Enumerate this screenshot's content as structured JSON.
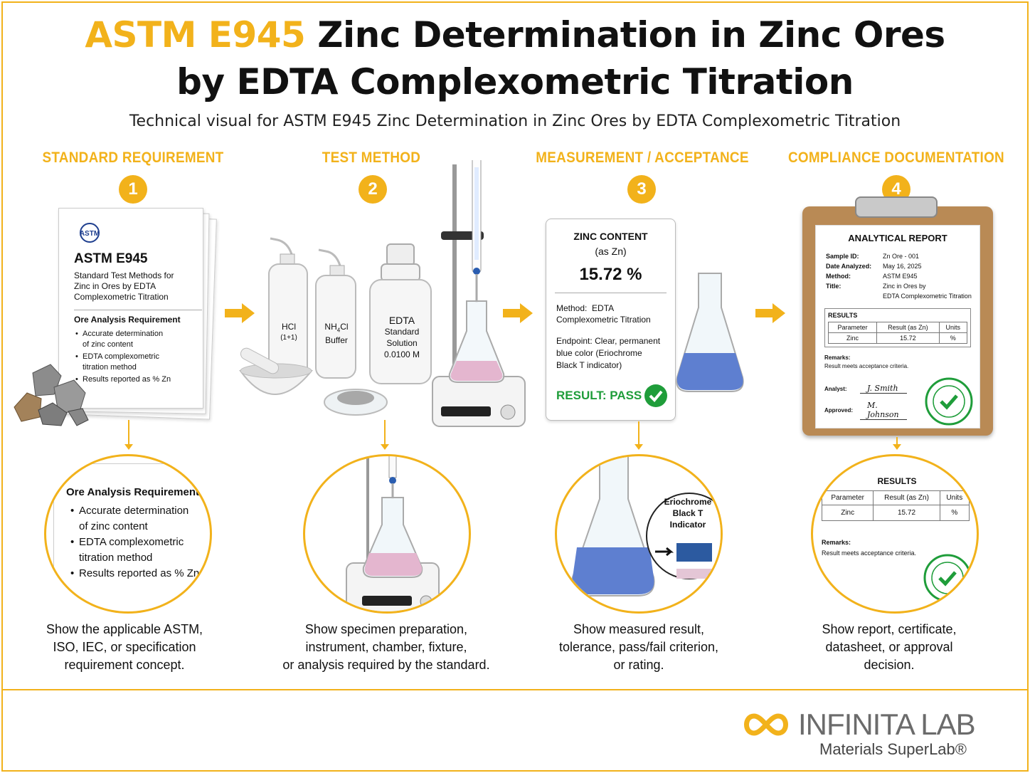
{
  "title": {
    "accent": "ASTM E945",
    "line1_rest": " Zinc Determination in Zinc Ores",
    "line2": "by EDTA Complexometric Titration"
  },
  "subtitle": "Technical visual for ASTM E945 Zinc Determination in Zinc Ores by EDTA Complexometric Titration",
  "colors": {
    "accent": "#f2b21b",
    "pass": "#1f9d3a",
    "indigo": "#1f3f8f"
  },
  "steps": [
    {
      "heading": "STANDARD REQUIREMENT",
      "number": "1",
      "caption": [
        "Show the applicable ASTM,",
        "ISO, IEC, or specification",
        "requirement concept."
      ]
    },
    {
      "heading": "TEST METHOD",
      "number": "2",
      "caption": [
        "Show specimen preparation,",
        "instrument, chamber, fixture,",
        "or analysis required by the standard."
      ]
    },
    {
      "heading": "MEASUREMENT / ACCEPTANCE",
      "number": "3",
      "caption": [
        "Show measured result,",
        "tolerance, pass/fail criterion,",
        "or rating."
      ]
    },
    {
      "heading": "COMPLIANCE DOCUMENTATION",
      "number": "4",
      "caption": [
        "Show report, certificate,",
        "datasheet, or approval",
        "decision."
      ]
    }
  ],
  "standard_doc": {
    "logo": "ASTM",
    "code": "ASTM E945",
    "desc": [
      "Standard Test Methods for",
      "Zinc in Ores by EDTA",
      "Complexometric Titration"
    ],
    "req_heading": "Ore Analysis Requirement",
    "req_items": [
      [
        "Accurate determination",
        "of zinc content"
      ],
      [
        "EDTA complexometric",
        "titration method"
      ],
      [
        "Results reported as % Zn"
      ]
    ]
  },
  "lab": {
    "bottle_hcl": [
      "HCl",
      "(1+1)"
    ],
    "bottle_nh4": [
      "NH",
      "4",
      "Cl",
      "Buffer"
    ],
    "bottle_edta": [
      "EDTA",
      "Standard",
      "Solution",
      "0.0100 M"
    ]
  },
  "result_card": {
    "label": [
      "ZINC CONTENT",
      "(as Zn)"
    ],
    "value": "15.72 %",
    "method_label": "Method:",
    "method_value": [
      "EDTA",
      "Complexometric Titration"
    ],
    "endpoint_label": "Endpoint:",
    "endpoint_value": [
      "Clear, permanent",
      "blue color (Eriochrome",
      "Black T indicator)"
    ],
    "result": "RESULT: PASS"
  },
  "indicator": [
    "Eriochrome",
    "Black T",
    "Indicator"
  ],
  "report": {
    "heading": "ANALYTICAL REPORT",
    "fields": [
      {
        "k": "Sample ID:",
        "v": [
          "Zn Ore - 001"
        ]
      },
      {
        "k": "Date Analyzed:",
        "v": [
          "May 16, 2025"
        ]
      },
      {
        "k": "Method:",
        "v": [
          "ASTM E945"
        ]
      },
      {
        "k": "Title:",
        "v": [
          "Zinc in Ores by",
          "EDTA Complexometric Titration"
        ]
      }
    ],
    "results_heading": "RESULTS",
    "table_headers": [
      "Parameter",
      "Result (as Zn)",
      "Units"
    ],
    "table_row": [
      "Zinc",
      "15.72",
      "%"
    ],
    "remarks_label": "Remarks:",
    "remarks": "Result meets acceptance criteria.",
    "analyst_label": "Analyst:",
    "analyst_sig": "J. Smith",
    "approved_label": "Approved:",
    "approved_sig": "M. Johnson",
    "stamp": "COMPLIANT"
  },
  "brand": {
    "name": "INFINITA LAB",
    "tagline": "Materials SuperLab®"
  }
}
